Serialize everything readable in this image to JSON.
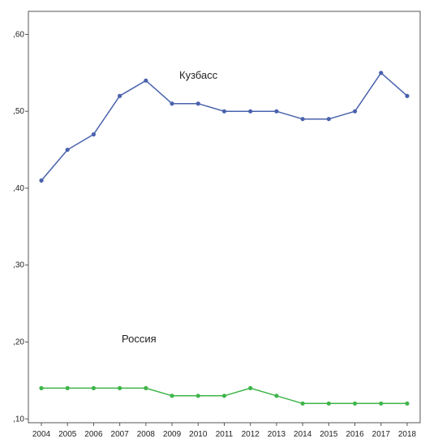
{
  "chart_data": {
    "type": "line",
    "title": "",
    "xlabel": "",
    "ylabel": "",
    "x": [
      "2004",
      "2005",
      "2006",
      "2007",
      "2008",
      "2009",
      "2010",
      "2011",
      "2012",
      "2013",
      "2014",
      "2015",
      "2016",
      "2017",
      "2018"
    ],
    "ylim": [
      0.095,
      0.63
    ],
    "yticks": [
      0.1,
      0.2,
      0.3,
      0.4,
      0.5,
      0.6
    ],
    "ytick_labels": [
      ",10",
      ",20",
      ",30",
      ",40",
      ",50",
      ",60"
    ],
    "grid": false,
    "legend": "none",
    "series": [
      {
        "name": "Кузбасс",
        "color": "#4a62ad",
        "values": [
          0.41,
          0.45,
          0.47,
          0.52,
          0.54,
          0.51,
          0.51,
          0.5,
          0.5,
          0.5,
          0.49,
          0.49,
          0.5,
          0.55,
          0.52
        ]
      },
      {
        "name": "Россия",
        "color": "#3fb54a",
        "values": [
          0.14,
          0.14,
          0.14,
          0.14,
          0.14,
          0.13,
          0.13,
          0.13,
          0.14,
          0.13,
          0.12,
          0.12,
          0.12,
          0.12,
          0.12
        ]
      }
    ]
  }
}
